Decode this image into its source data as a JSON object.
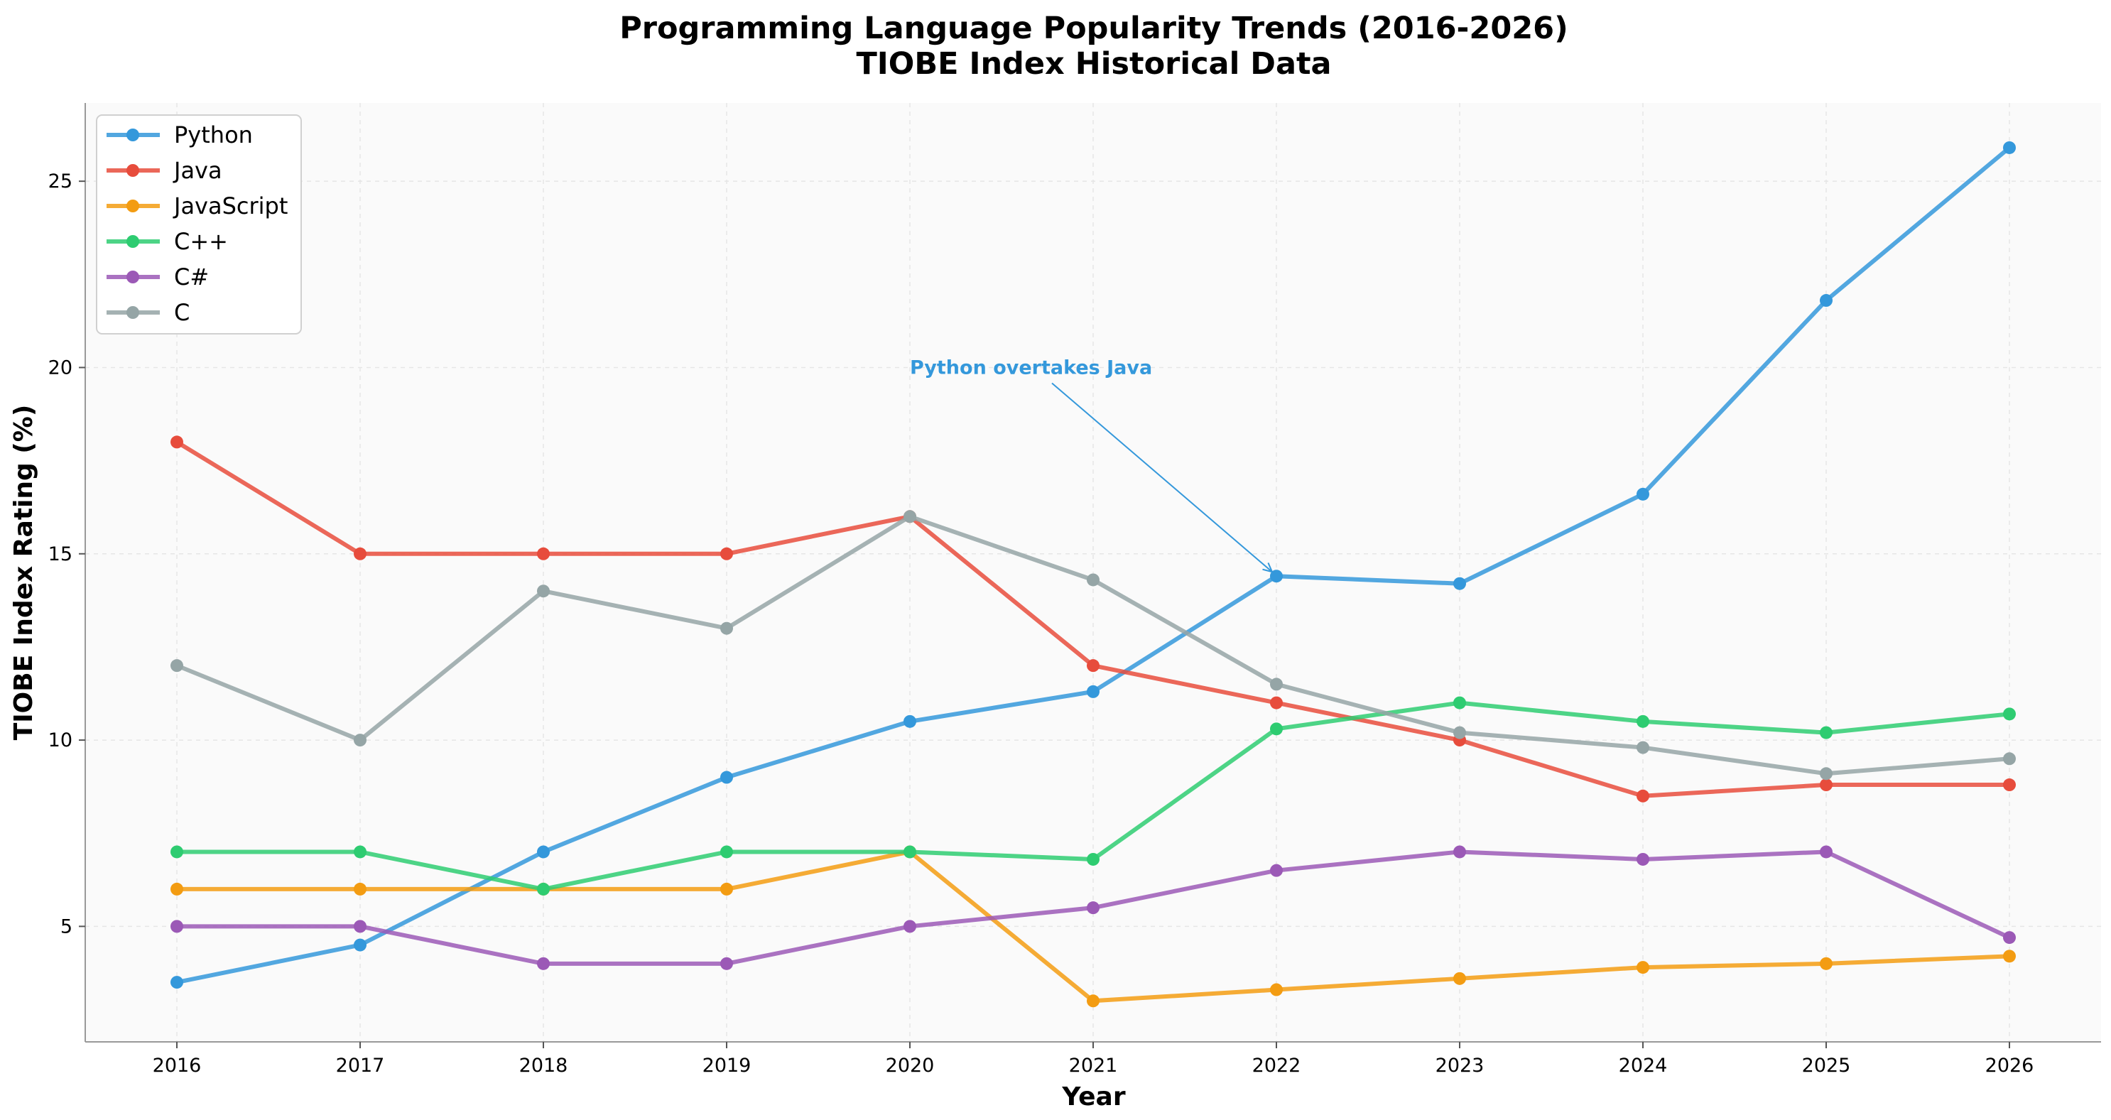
{
  "chart_data": {
    "type": "line",
    "title": "Programming Language Popularity Trends (2016-2026)",
    "subtitle": "TIOBE Index Historical Data",
    "xlabel": "Year",
    "ylabel": "TIOBE Index Rating (%)",
    "x": [
      2016,
      2017,
      2018,
      2019,
      2020,
      2021,
      2022,
      2023,
      2024,
      2025,
      2026
    ],
    "xlim": [
      2015.5,
      2026.5
    ],
    "ylim": [
      1.9,
      27.1
    ],
    "yticks": [
      5,
      10,
      15,
      20,
      25
    ],
    "grid": true,
    "legend_position": "top-left",
    "series": [
      {
        "name": "Python",
        "color": "#3498db",
        "values": [
          3.5,
          4.5,
          7.0,
          9.0,
          10.5,
          11.3,
          14.4,
          14.2,
          16.6,
          21.8,
          25.9
        ]
      },
      {
        "name": "Java",
        "color": "#e74c3c",
        "values": [
          18.0,
          15.0,
          15.0,
          15.0,
          16.0,
          12.0,
          11.0,
          10.0,
          8.5,
          8.8,
          8.8
        ]
      },
      {
        "name": "JavaScript",
        "color": "#f39c12",
        "values": [
          6.0,
          6.0,
          6.0,
          6.0,
          7.0,
          3.0,
          3.3,
          3.6,
          3.9,
          4.0,
          4.2
        ]
      },
      {
        "name": "C++",
        "color": "#2ecc71",
        "values": [
          7.0,
          7.0,
          6.0,
          7.0,
          7.0,
          6.8,
          10.3,
          11.0,
          10.5,
          10.2,
          10.7
        ]
      },
      {
        "name": "C#",
        "color": "#9b59b6",
        "values": [
          5.0,
          5.0,
          4.0,
          4.0,
          5.0,
          5.5,
          6.5,
          7.0,
          6.8,
          7.0,
          4.7
        ]
      },
      {
        "name": "C",
        "color": "#95a5a6",
        "values": [
          12.0,
          10.0,
          14.0,
          13.0,
          16.0,
          14.3,
          11.5,
          10.2,
          9.8,
          9.1,
          9.5
        ]
      }
    ],
    "annotations": [
      {
        "text": "Python overtakes Java",
        "x": 2022,
        "y": 14.4,
        "text_x": 2020,
        "text_y": 20.0,
        "color": "#3498db"
      }
    ]
  }
}
